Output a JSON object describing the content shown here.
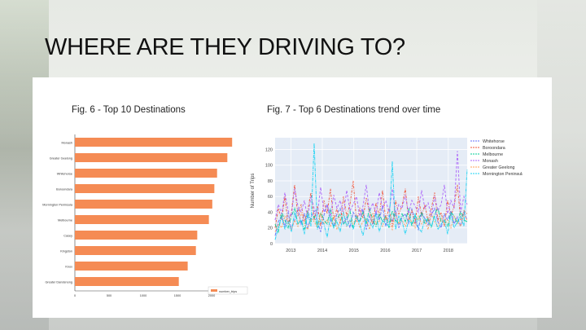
{
  "slide": {
    "title": "WHERE ARE THEY DRIVING TO?"
  },
  "colors": {
    "bar": "#f58b54",
    "line_plot_bg": "#e5ecf6",
    "series": [
      "#636efa",
      "#ef553b",
      "#00cc96",
      "#ab63fa",
      "#ffa15a",
      "#19d3f3"
    ]
  },
  "chart_data": [
    {
      "type": "bar",
      "orientation": "horizontal",
      "title": "Fig. 6 - Top 10 Destinations",
      "categories": [
        "Monash",
        "Greater Geelong",
        "Whitehorse",
        "Boroondara",
        "Mornington Peninsula",
        "Melbourne",
        "Casey",
        "Kingston",
        "Knox",
        "Greater Dandenong"
      ],
      "values": [
        2300,
        2230,
        2080,
        2040,
        2010,
        1960,
        1790,
        1770,
        1650,
        1520
      ],
      "xlim": [
        0,
        2500
      ],
      "xticks": [
        "0",
        "500",
        "1000",
        "1500",
        "2000"
      ],
      "legend": "number_trips"
    },
    {
      "type": "line",
      "title": "Fig. 7 - Top 6 Destinations trend over time",
      "ylabel": "Number of Trips",
      "ylim": [
        0,
        135
      ],
      "yticks": [
        "0",
        "20",
        "40",
        "60",
        "80",
        "100",
        "120"
      ],
      "xlim": [
        2012.5,
        2018.6
      ],
      "xticks": [
        "2013",
        "2014",
        "2015",
        "2016",
        "2017",
        "2018"
      ],
      "series": [
        {
          "name": "Whitehorse",
          "values": [
            10,
            28,
            35,
            22,
            40,
            18,
            30,
            45,
            25,
            38,
            20,
            33,
            42,
            28,
            15,
            36,
            50,
            30,
            22,
            38,
            45,
            26,
            34,
            20,
            40,
            32,
            28,
            44,
            18,
            35,
            25,
            40,
            30,
            48,
            22,
            36,
            28,
            42,
            20,
            34,
            38,
            26,
            44,
            30,
            18,
            40,
            32,
            24,
            36,
            45,
            28,
            20,
            38,
            30,
            42,
            25,
            34,
            22,
            40,
            30
          ]
        },
        {
          "name": "Boroondara",
          "values": [
            20,
            45,
            30,
            60,
            25,
            40,
            75,
            35,
            50,
            28,
            42,
            65,
            30,
            48,
            22,
            55,
            38,
            70,
            30,
            45,
            25,
            60,
            35,
            50,
            80,
            28,
            45,
            32,
            58,
            40,
            25,
            52,
            35,
            68,
            30,
            45,
            22,
            55,
            38,
            48,
            70,
            30,
            42,
            25,
            60,
            35,
            50,
            28,
            45,
            65,
            30,
            40,
            22,
            55,
            35,
            48,
            75,
            30,
            42,
            38
          ]
        },
        {
          "name": "Melbourne",
          "values": [
            25,
            15,
            40,
            30,
            20,
            35,
            45,
            25,
            30,
            18,
            42,
            28,
            35,
            22,
            40,
            30,
            25,
            45,
            20,
            32,
            38,
            25,
            30,
            42,
            20,
            35,
            28,
            40,
            25,
            45,
            30,
            22,
            38,
            28,
            35,
            20,
            42,
            30,
            25,
            38,
            28,
            45,
            22,
            35,
            30,
            40,
            25,
            32,
            20,
            38,
            45,
            28,
            30,
            22,
            40,
            35,
            25,
            42,
            30,
            28
          ]
        },
        {
          "name": "Monash",
          "values": [
            30,
            50,
            38,
            65,
            42,
            35,
            70,
            48,
            40,
            55,
            32,
            60,
            45,
            38,
            72,
            40,
            50,
            35,
            62,
            45,
            55,
            38,
            68,
            42,
            50,
            60,
            35,
            48,
            75,
            40,
            52,
            38,
            65,
            45,
            55,
            40,
            70,
            35,
            50,
            45,
            62,
            38,
            55,
            48,
            40,
            68,
            45,
            52,
            35,
            60,
            42,
            50,
            75,
            38,
            55,
            45,
            118,
            40,
            60,
            50
          ]
        },
        {
          "name": "Greater Geelong",
          "values": [
            15,
            25,
            20,
            35,
            28,
            18,
            30,
            22,
            40,
            25,
            18,
            32,
            28,
            20,
            38,
            25,
            30,
            22,
            35,
            18,
            28,
            40,
            22,
            30,
            25,
            35,
            20,
            28,
            32,
            18,
            38,
            25,
            30,
            22,
            35,
            28,
            18,
            40,
            25,
            30,
            22,
            32,
            28,
            20,
            35,
            25,
            30,
            18,
            38,
            28,
            22,
            32,
            25,
            30,
            20,
            35,
            28,
            22,
            38,
            30
          ]
        },
        {
          "name": "Mornington Peninsula",
          "values": [
            5,
            20,
            35,
            18,
            28,
            15,
            40,
            25,
            30,
            12,
            38,
            22,
            128,
            18,
            30,
            25,
            8,
            35,
            20,
            28,
            15,
            40,
            22,
            30,
            18,
            35,
            25,
            10,
            32,
            28,
            20,
            38,
            15,
            30,
            25,
            22,
            105,
            18,
            35,
            28,
            12,
            30,
            25,
            38,
            20,
            15,
            32,
            28,
            22,
            35,
            18,
            25,
            30,
            12,
            38,
            20,
            28,
            35,
            22,
            95
          ]
        }
      ]
    }
  ]
}
